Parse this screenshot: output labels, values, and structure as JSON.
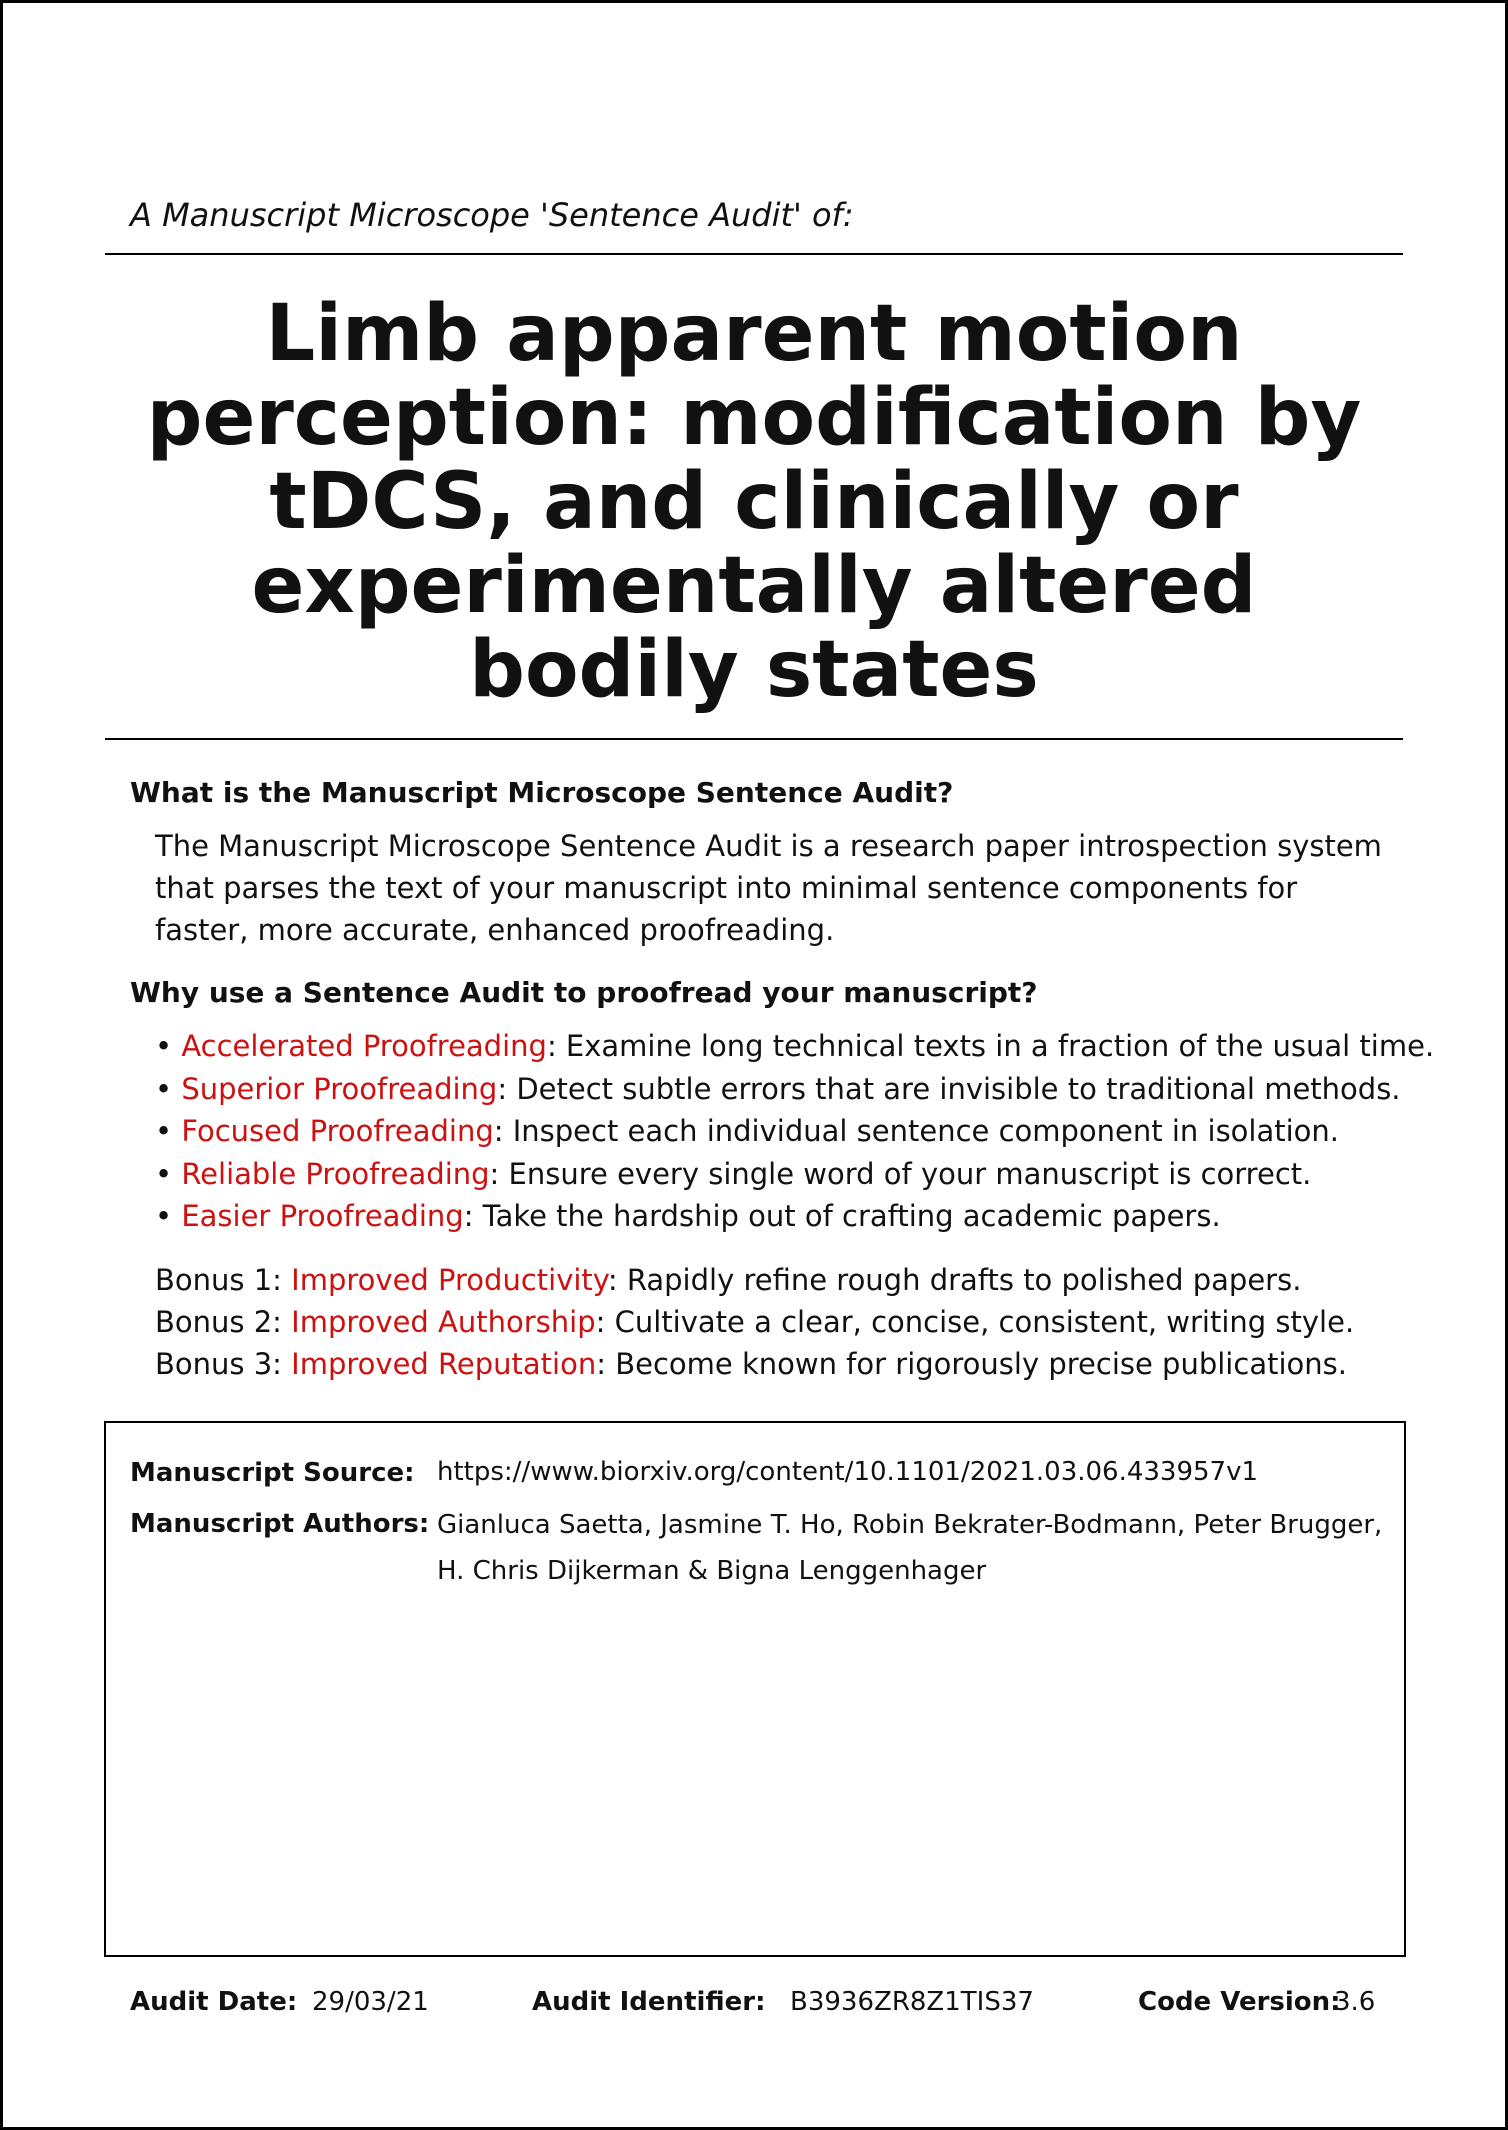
{
  "header": {
    "subtitle": "A Manuscript Microscope 'Sentence Audit' of:",
    "title": "Limb apparent motion perception: modification by tDCS, and clinically or experimentally altered bodily states"
  },
  "what": {
    "heading": "What is the Manuscript Microscope Sentence Audit?",
    "body": "The Manuscript Microscope Sentence Audit is a research paper introspection system that parses the text of your manuscript into minimal sentence components for faster, more accurate, enhanced proofreading."
  },
  "why": {
    "heading": "Why use a Sentence Audit to proofread your manuscript?",
    "bullets": [
      {
        "term": "Accelerated Proofreading",
        "desc": ": Examine long technical texts in a fraction of the usual time."
      },
      {
        "term": "Superior Proofreading",
        "desc": ": Detect subtle errors that are invisible to traditional methods."
      },
      {
        "term": "Focused Proofreading",
        "desc": ": Inspect each individual sentence component in isolation."
      },
      {
        "term": "Reliable Proofreading",
        "desc": ": Ensure every single word of your manuscript is correct."
      },
      {
        "term": "Easier Proofreading",
        "desc": ": Take the hardship out of crafting academic papers."
      }
    ],
    "bonuses": [
      {
        "prefix": "Bonus 1: ",
        "term": "Improved Productivity",
        "desc": ": Rapidly refine rough drafts to polished papers."
      },
      {
        "prefix": "Bonus 2: ",
        "term": "Improved Authorship",
        "desc": ": Cultivate a clear, concise, consistent, writing style."
      },
      {
        "prefix": "Bonus 3: ",
        "term": "Improved Reputation",
        "desc": ": Become known for rigorously precise publications."
      }
    ]
  },
  "manuscript": {
    "source_label": "Manuscript Source:",
    "source_value": "https://www.biorxiv.org/content/10.1101/2021.03.06.433957v1",
    "authors_label": "Manuscript Authors:",
    "authors_line1": "Gianluca Saetta, Jasmine T. Ho, Robin Bekrater-Bodmann, Peter Brugger,",
    "authors_line2": "H. Chris Dijkerman & Bigna Lenggenhager"
  },
  "footer": {
    "date_label": "Audit Date:",
    "date_value": "29/03/21",
    "id_label": "Audit Identifier:",
    "id_value": "B3936ZR8Z1TIS37",
    "version_label": "Code Version:",
    "version_value": "3.6"
  },
  "colors": {
    "highlight": "#cc1111"
  }
}
